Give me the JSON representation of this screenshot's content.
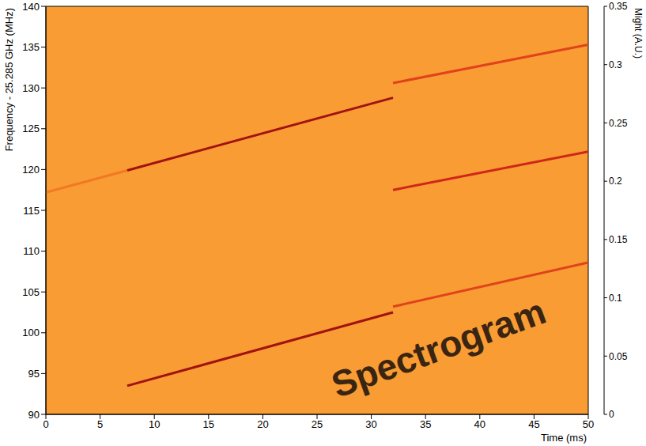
{
  "chart_data": {
    "type": "spectrogram",
    "x_label": "Time (ms)",
    "y_label": "Frequency - 25.285 GHz (MHz)",
    "annotation": "Spectrogram",
    "xlim": [
      0,
      50
    ],
    "xticks": [
      0,
      5,
      10,
      15,
      20,
      25,
      30,
      35,
      40,
      45,
      50
    ],
    "ylim": [
      90,
      140
    ],
    "yticks": [
      90,
      95,
      100,
      105,
      110,
      115,
      120,
      125,
      130,
      135,
      140
    ],
    "grid": false,
    "background_level": 0.175,
    "series": [
      {
        "x": [
          0,
          7.5
        ],
        "values": [
          117.2,
          119.9
        ],
        "intensity": 0.19
      },
      {
        "x": [
          7.5,
          32
        ],
        "values": [
          119.9,
          128.8
        ],
        "intensity": 0.27
      },
      {
        "x": [
          32,
          50
        ],
        "values": [
          130.6,
          135.3
        ],
        "intensity": 0.22
      },
      {
        "x": [
          32,
          50
        ],
        "values": [
          117.5,
          122.2
        ],
        "intensity": 0.24
      },
      {
        "x": [
          7.5,
          32
        ],
        "values": [
          93.5,
          102.5
        ],
        "intensity": 0.27
      },
      {
        "x": [
          32,
          50
        ],
        "values": [
          103.2,
          108.6
        ],
        "intensity": 0.22
      }
    ],
    "colorbar": {
      "label": "Might (A.U.)",
      "range": [
        0,
        0.35
      ],
      "ticks": [
        0,
        0.05,
        0.1,
        0.15,
        0.2,
        0.25,
        0.3,
        0.35
      ]
    }
  }
}
